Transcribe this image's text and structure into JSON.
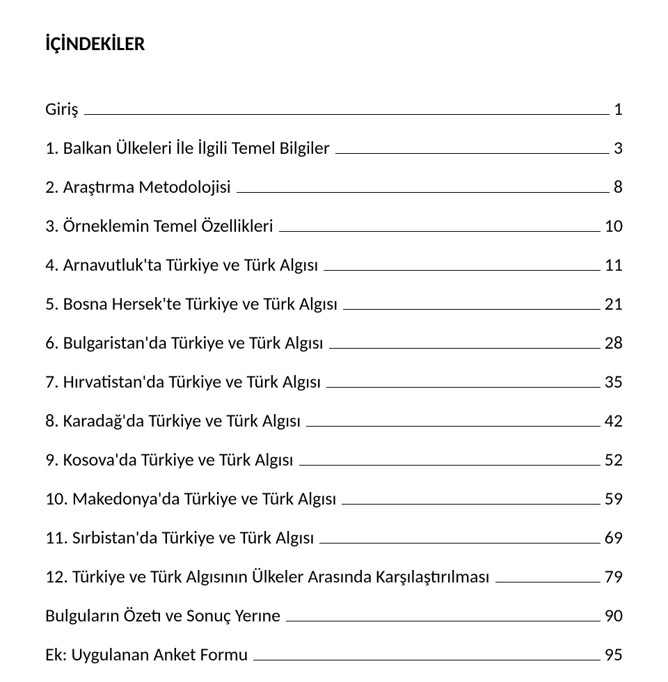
{
  "heading": "İÇİNDEKİLER",
  "toc": [
    {
      "label": "Giriş",
      "page": "1"
    },
    {
      "label": "1. Balkan Ülkeleri İle İlgili Temel Bilgiler",
      "page": "3"
    },
    {
      "label": "2. Araştırma Metodolojisi",
      "page": "8"
    },
    {
      "label": "3. Örneklemin Temel Özellikleri",
      "page": "10"
    },
    {
      "label": "4. Arnavutluk'ta Türkiye ve Türk Algısı",
      "page": "11"
    },
    {
      "label": "5. Bosna Hersek'te Türkiye ve Türk Algısı",
      "page": "21"
    },
    {
      "label": "6. Bulgaristan'da Türkiye ve Türk Algısı",
      "page": "28"
    },
    {
      "label": "7. Hırvatistan'da Türkiye ve Türk Algısı",
      "page": "35"
    },
    {
      "label": "8. Karadağ'da Türkiye ve Türk Algısı",
      "page": "42"
    },
    {
      "label": "9. Kosova'da Türkiye ve Türk Algısı",
      "page": "52"
    },
    {
      "label": "10. Makedonya'da Türkiye ve Türk Algısı",
      "page": "59"
    },
    {
      "label": "11. Sırbistan'da Türkiye ve Türk Algısı",
      "page": "69"
    },
    {
      "label": "12. Türkiye ve Türk Algısının Ülkeler Arasında Karşılaştırılması",
      "page": "79"
    },
    {
      "label": "Bulguların Özetı ve Sonuç Yerıne",
      "page": "90"
    },
    {
      "label": "Ek: Uygulanan Anket Formu",
      "page": "95"
    }
  ],
  "style": {
    "background_color": "#ffffff",
    "text_color": "#000000",
    "heading_fontsize": 28,
    "heading_fontweight": 700,
    "line_fontsize": 26,
    "line_spacing": 24,
    "underline_color": "#000000",
    "underline_thickness": 1.5,
    "font_family": "Calibri"
  }
}
